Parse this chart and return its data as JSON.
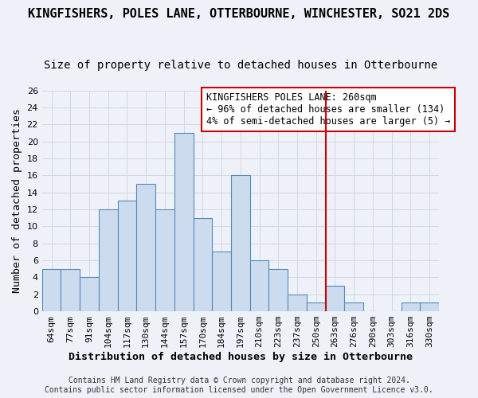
{
  "title": "KINGFISHERS, POLES LANE, OTTERBOURNE, WINCHESTER, SO21 2DS",
  "subtitle": "Size of property relative to detached houses in Otterbourne",
  "xlabel": "Distribution of detached houses by size in Otterbourne",
  "ylabel": "Number of detached properties",
  "categories": [
    "64sqm",
    "77sqm",
    "91sqm",
    "104sqm",
    "117sqm",
    "130sqm",
    "144sqm",
    "157sqm",
    "170sqm",
    "184sqm",
    "197sqm",
    "210sqm",
    "223sqm",
    "237sqm",
    "250sqm",
    "263sqm",
    "276sqm",
    "290sqm",
    "303sqm",
    "316sqm",
    "330sqm"
  ],
  "values": [
    5,
    5,
    4,
    12,
    13,
    15,
    12,
    21,
    11,
    7,
    16,
    6,
    5,
    2,
    1,
    3,
    1,
    0,
    0,
    1,
    1
  ],
  "bar_color": "#ccdcee",
  "bar_edge_color": "#5588bb",
  "grid_color": "#d0d8e0",
  "background_color": "#eef2f8",
  "red_line_index": 15,
  "red_line_color": "#cc0000",
  "annotation_text": "KINGFISHERS POLES LANE: 260sqm\n← 96% of detached houses are smaller (134)\n4% of semi-detached houses are larger (5) →",
  "annotation_box_color": "#ffffff",
  "annotation_box_edge": "#cc0000",
  "footer_line1": "Contains HM Land Registry data © Crown copyright and database right 2024.",
  "footer_line2": "Contains public sector information licensed under the Open Government Licence v3.0.",
  "ylim": [
    0,
    26
  ],
  "yticks": [
    0,
    2,
    4,
    6,
    8,
    10,
    12,
    14,
    16,
    18,
    20,
    22,
    24,
    26
  ],
  "title_fontsize": 11,
  "subtitle_fontsize": 10,
  "axis_label_fontsize": 9.5,
  "tick_fontsize": 8,
  "annotation_fontsize": 8.5,
  "footer_fontsize": 7
}
